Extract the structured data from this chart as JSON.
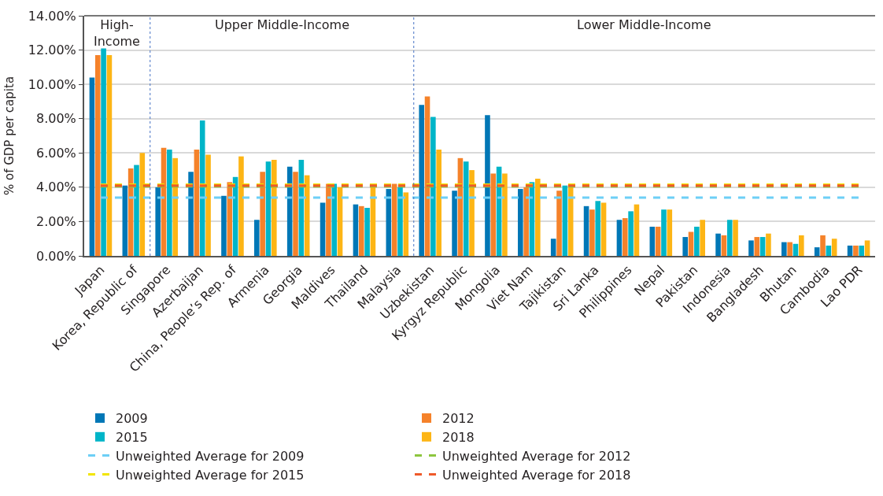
{
  "chart_data": {
    "type": "bar",
    "ylabel": "% of GDP per capita",
    "categories": [
      "Japan",
      "Korea, Republic of",
      "Singapore",
      "Azerbaijan",
      "China, People’s Rep. of",
      "Armenia",
      "Georgia",
      "Maldives",
      "Thailand",
      "Malaysia",
      "Uzbekistan",
      "Kyrgyz Republic",
      "Mongolia",
      "Viet Nam",
      "Tajikistan",
      "Sri Lanka",
      "Philippines",
      "Nepal",
      "Pakistan",
      "Indonesia",
      "Bangladesh",
      "Bhutan",
      "Cambodia",
      "Lao PDR"
    ],
    "series": [
      {
        "name": "2009",
        "color": "#0077b6",
        "values": [
          10.4,
          4.1,
          4.0,
          4.9,
          3.5,
          2.1,
          5.2,
          3.1,
          3.0,
          3.9,
          8.8,
          3.8,
          8.2,
          3.9,
          1.0,
          2.9,
          2.1,
          1.7,
          1.1,
          1.3,
          0.9,
          0.8,
          0.5,
          0.6
        ]
      },
      {
        "name": "2012",
        "color": "#f5822a",
        "values": [
          11.7,
          5.1,
          6.3,
          6.2,
          4.3,
          4.9,
          4.9,
          4.2,
          2.9,
          4.2,
          9.3,
          5.7,
          4.8,
          4.0,
          3.8,
          2.7,
          2.2,
          1.7,
          1.4,
          1.2,
          1.1,
          0.8,
          1.2,
          0.6
        ]
      },
      {
        "name": "2015",
        "color": "#00b5c8",
        "values": [
          12.1,
          5.3,
          6.2,
          7.9,
          4.6,
          5.5,
          5.6,
          4.2,
          2.8,
          4.0,
          8.1,
          5.5,
          5.2,
          4.3,
          4.1,
          3.2,
          2.6,
          2.7,
          1.7,
          2.1,
          1.1,
          0.7,
          0.6,
          0.6
        ]
      },
      {
        "name": "2018",
        "color": "#fdb515",
        "values": [
          11.7,
          6.0,
          5.7,
          5.9,
          5.8,
          5.6,
          4.7,
          4.0,
          4.0,
          3.7,
          6.2,
          5.0,
          4.8,
          4.5,
          4.1,
          3.1,
          3.0,
          2.7,
          2.1,
          2.1,
          1.3,
          1.2,
          1.0,
          0.9
        ]
      },
      {
        "name": "Unweighted Average for 2009",
        "type": "line",
        "line_style": "dashed",
        "color": "#6dcff6",
        "values": [
          3.4,
          3.4,
          3.4,
          3.4,
          3.4,
          3.4,
          3.4,
          3.4,
          3.4,
          3.4,
          3.4,
          3.4,
          3.4,
          3.4,
          3.4,
          3.4,
          3.4,
          3.4,
          3.4,
          3.4,
          3.4,
          3.4,
          3.4,
          3.4
        ]
      },
      {
        "name": "Unweighted Average for 2012",
        "type": "line",
        "line_style": "dashed",
        "color": "#8dc63f",
        "values": [
          4.05,
          4.05,
          4.05,
          4.05,
          4.05,
          4.05,
          4.05,
          4.05,
          4.05,
          4.05,
          4.05,
          4.05,
          4.05,
          4.05,
          4.05,
          4.05,
          4.05,
          4.05,
          4.05,
          4.05,
          4.05,
          4.05,
          4.05,
          4.05
        ]
      },
      {
        "name": "Unweighted Average for 2015",
        "type": "line",
        "line_style": "dashed",
        "color": "#f2e500",
        "values": [
          4.15,
          4.15,
          4.15,
          4.15,
          4.15,
          4.15,
          4.15,
          4.15,
          4.15,
          4.15,
          4.15,
          4.15,
          4.15,
          4.15,
          4.15,
          4.15,
          4.15,
          4.15,
          4.15,
          4.15,
          4.15,
          4.15,
          4.15,
          4.15
        ]
      },
      {
        "name": "Unweighted Average for 2018",
        "type": "line",
        "line_style": "dashed",
        "color": "#ef5a2a",
        "values": [
          4.1,
          4.1,
          4.1,
          4.1,
          4.1,
          4.1,
          4.1,
          4.1,
          4.1,
          4.1,
          4.1,
          4.1,
          4.1,
          4.1,
          4.1,
          4.1,
          4.1,
          4.1,
          4.1,
          4.1,
          4.1,
          4.1,
          4.1,
          4.1
        ]
      }
    ],
    "annotations": [
      "High-\nIncome",
      "Upper Middle-Income",
      "Lower Middle-Income"
    ],
    "ylim": [
      0,
      14
    ],
    "yticks": [
      {
        "value": 0,
        "label": "0.00%"
      },
      {
        "value": 2,
        "label": "2.00%"
      },
      {
        "value": 4,
        "label": "4.00%"
      },
      {
        "value": 6,
        "label": "6.00%"
      },
      {
        "value": 8,
        "label": "8.00%"
      },
      {
        "value": 10,
        "label": "10.00%"
      },
      {
        "value": 12,
        "label": "12.00%"
      },
      {
        "value": 14,
        "label": "14.00%"
      }
    ],
    "grid": "y",
    "legend": "bottom",
    "marker": "none"
  }
}
